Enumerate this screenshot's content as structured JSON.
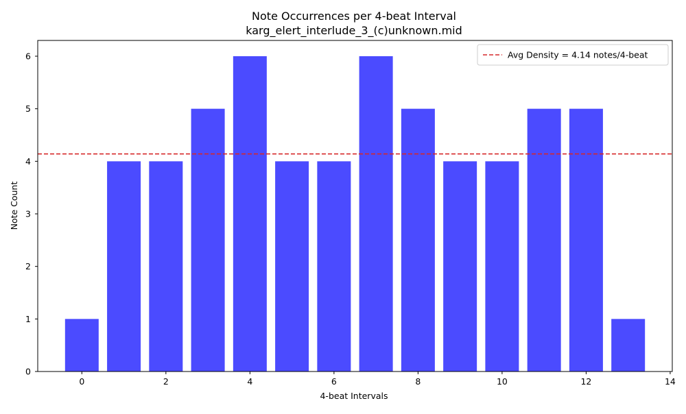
{
  "chart_data": {
    "type": "bar",
    "title": "Note Occurrences per 4-beat Interval",
    "subtitle": "karg_elert_interlude_3_(c)unknown.mid",
    "xlabel": "4-beat Intervals",
    "ylabel": "Note Count",
    "x": [
      0,
      1,
      2,
      3,
      4,
      5,
      6,
      7,
      8,
      9,
      10,
      11,
      12,
      13
    ],
    "values": [
      1,
      4,
      4,
      5,
      6,
      4,
      4,
      6,
      5,
      4,
      4,
      5,
      5,
      1
    ],
    "xlim": [
      -1.05,
      14.05
    ],
    "ylim": [
      0,
      6.3
    ],
    "xticks": [
      0,
      2,
      4,
      6,
      8,
      10,
      12,
      14
    ],
    "yticks": [
      0,
      1,
      2,
      3,
      4,
      5,
      6
    ],
    "bar_color": "#4b4bff",
    "grid": false,
    "legend_position": "upper right",
    "reference_line": {
      "label": "Avg Density = 4.14 notes/4-beat",
      "value": 4.14,
      "color": "#d62728",
      "style": "dashed"
    }
  }
}
